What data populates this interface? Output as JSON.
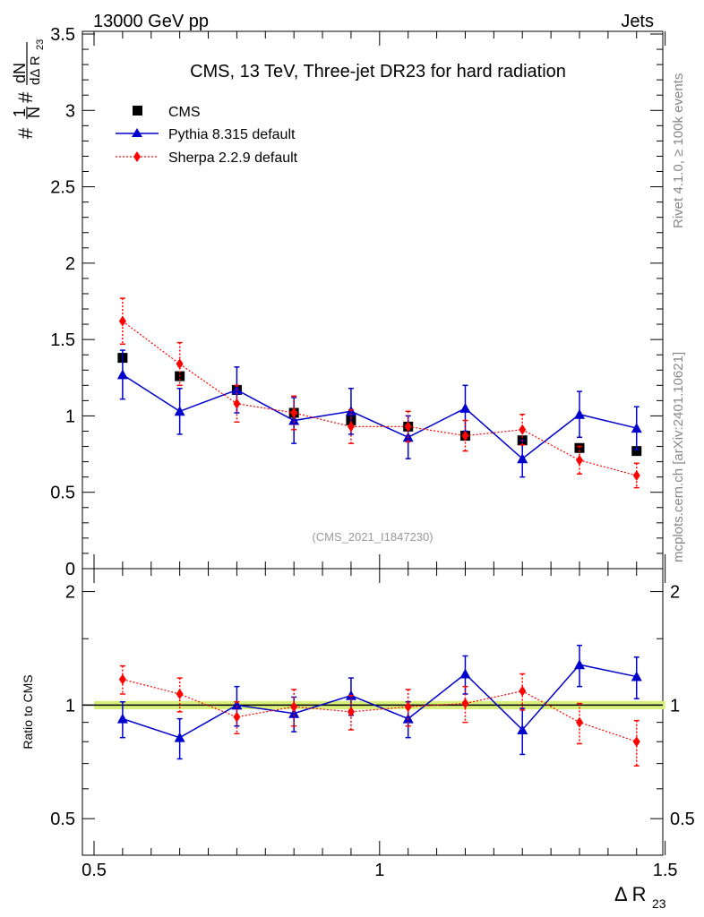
{
  "header": {
    "left": "13000 GeV pp",
    "right": "Jets"
  },
  "side_text": {
    "rivet": "Rivet 4.1.0, ≥ 100k events",
    "mcplots": "mcplots.cern.ch [arXiv:2401.10621]"
  },
  "watermark": "(CMS_2021_I1847230)",
  "axis_labels": {
    "y_main_parts": [
      "#",
      "1",
      "N",
      "#",
      "dN",
      "dΔ R",
      "23"
    ],
    "y_ratio": "Ratio to CMS",
    "x_parts": [
      "Δ R",
      "23"
    ]
  },
  "chart_data": [
    {
      "type": "scatter",
      "title": "CMS, 13 TeV, Three-jet DR23 for hard radiation",
      "xlim": [
        0.5,
        1.5
      ],
      "ylim": [
        0,
        3.5
      ],
      "y_ticks": [
        "0",
        "0.5",
        "1",
        "1.5",
        "2",
        "2.5",
        "3",
        "3.5"
      ],
      "x_ticks": [
        "0.5",
        "1",
        "1.5"
      ],
      "legend_position": "top-left",
      "series": [
        {
          "name": "CMS",
          "color": "#000000",
          "marker": "square",
          "x": [
            0.55,
            0.65,
            0.75,
            0.85,
            0.95,
            1.05,
            1.15,
            1.25,
            1.35,
            1.45
          ],
          "y": [
            1.38,
            1.26,
            1.17,
            1.02,
            0.97,
            0.93,
            0.87,
            0.84,
            0.79,
            0.77
          ],
          "err": [
            0.02,
            0.02,
            0.02,
            0.02,
            0.02,
            0.02,
            0.02,
            0.02,
            0.02,
            0.02
          ]
        },
        {
          "name": "Pythia 8.315 default",
          "color": "#0000cc",
          "marker": "triangle",
          "line": "solid",
          "x": [
            0.55,
            0.65,
            0.75,
            0.85,
            0.95,
            1.05,
            1.15,
            1.25,
            1.35,
            1.45
          ],
          "y": [
            1.27,
            1.03,
            1.17,
            0.97,
            1.03,
            0.86,
            1.05,
            0.72,
            1.01,
            0.92
          ],
          "err": [
            0.16,
            0.15,
            0.15,
            0.15,
            0.15,
            0.14,
            0.15,
            0.12,
            0.15,
            0.14
          ]
        },
        {
          "name": "Sherpa 2.2.9 default",
          "color": "#ff0000",
          "marker": "diamond",
          "line": "dotted",
          "x": [
            0.55,
            0.65,
            0.75,
            0.85,
            0.95,
            1.05,
            1.15,
            1.25,
            1.35,
            1.45
          ],
          "y": [
            1.62,
            1.34,
            1.08,
            1.02,
            0.93,
            0.93,
            0.87,
            0.91,
            0.71,
            0.61
          ],
          "err": [
            0.15,
            0.14,
            0.12,
            0.11,
            0.11,
            0.1,
            0.1,
            0.1,
            0.09,
            0.08
          ]
        }
      ]
    },
    {
      "type": "scatter",
      "title": "",
      "ylabel": "Ratio to CMS",
      "xlabel": "Δ R23",
      "xlim": [
        0.5,
        1.5
      ],
      "ylim": [
        0.4,
        2.3
      ],
      "y_scale": "log",
      "y_ticks": [
        "0.5",
        "1",
        "2"
      ],
      "band": {
        "center": 1.0,
        "half_width": 0.025,
        "color": "#d8f07a"
      },
      "series": [
        {
          "name": "Pythia 8.315 default",
          "color": "#0000cc",
          "marker": "triangle",
          "line": "solid",
          "x": [
            0.55,
            0.65,
            0.75,
            0.85,
            0.95,
            1.05,
            1.15,
            1.25,
            1.35,
            1.45
          ],
          "y": [
            0.92,
            0.82,
            1.0,
            0.95,
            1.06,
            0.92,
            1.21,
            0.86,
            1.28,
            1.19
          ],
          "err": [
            0.1,
            0.1,
            0.12,
            0.1,
            0.12,
            0.1,
            0.14,
            0.12,
            0.16,
            0.15
          ]
        },
        {
          "name": "Sherpa 2.2.9 default",
          "color": "#ff0000",
          "marker": "diamond",
          "line": "dotted",
          "x": [
            0.55,
            0.65,
            0.75,
            0.85,
            0.95,
            1.05,
            1.15,
            1.25,
            1.35,
            1.45
          ],
          "y": [
            1.17,
            1.07,
            0.93,
            0.99,
            0.96,
            0.99,
            1.01,
            1.09,
            0.9,
            0.8
          ],
          "err": [
            0.1,
            0.11,
            0.09,
            0.11,
            0.1,
            0.11,
            0.11,
            0.12,
            0.11,
            0.11
          ]
        }
      ]
    }
  ]
}
